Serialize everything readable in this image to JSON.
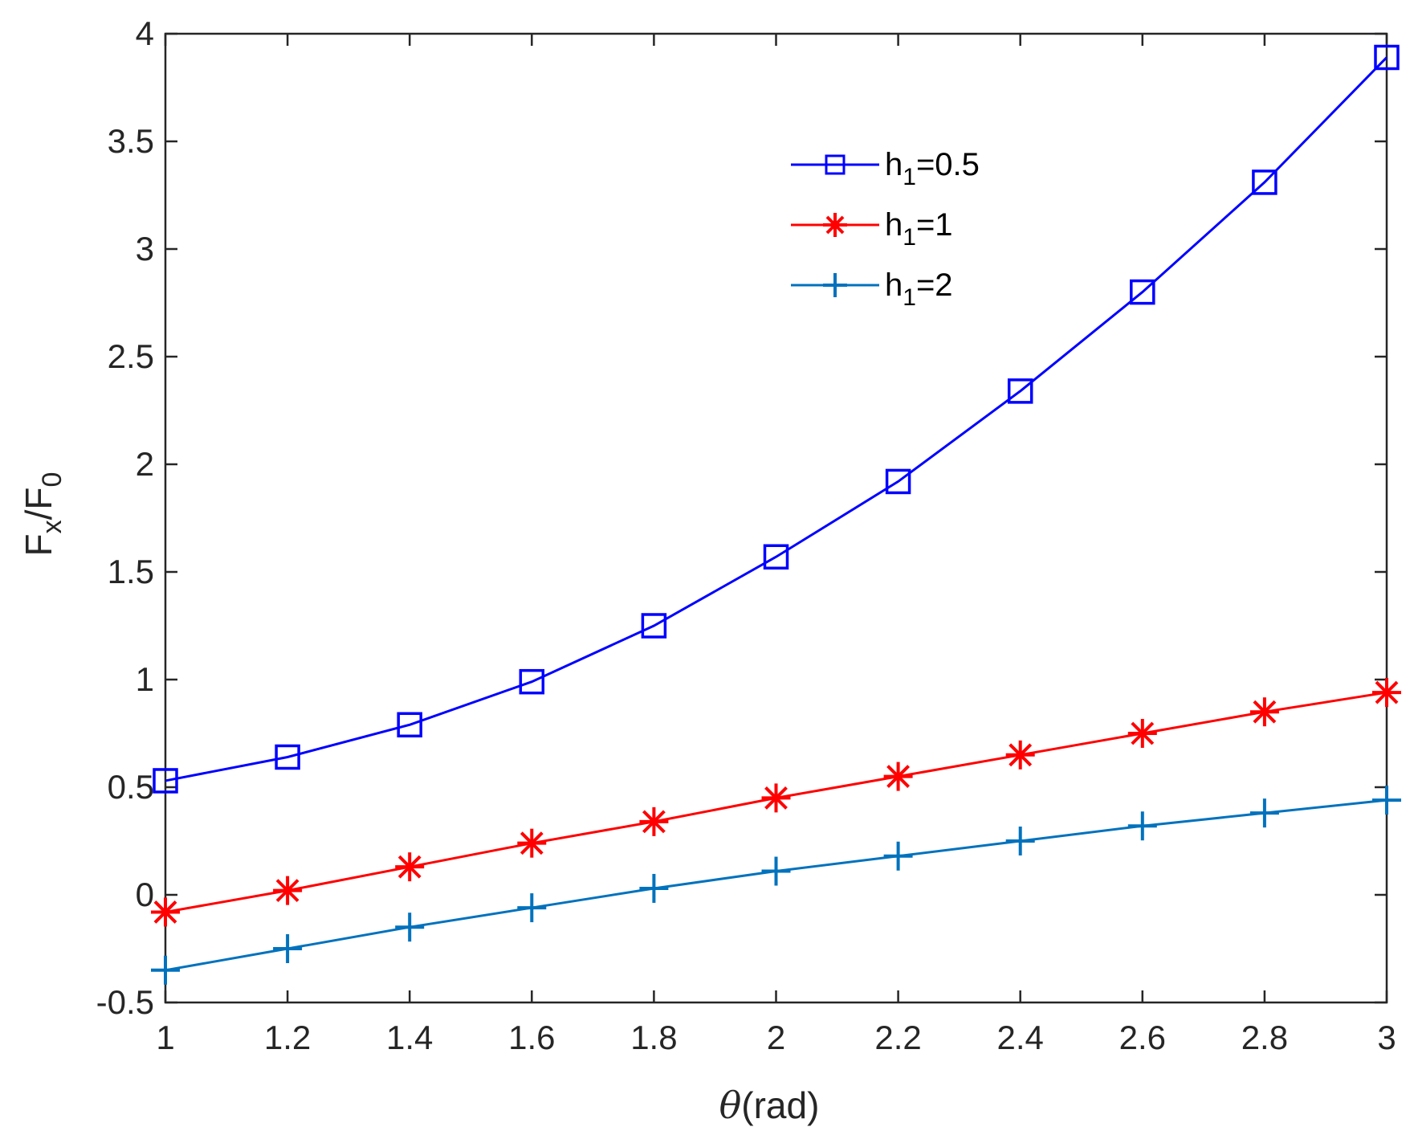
{
  "chart_data": {
    "type": "line",
    "title": "",
    "xlabel": {
      "symbol": "θ",
      "rest": "(rad)"
    },
    "ylabel": {
      "main1": "F",
      "sub1": "x",
      "sep": "/F",
      "sub2": "0"
    },
    "xlim": [
      1,
      3
    ],
    "ylim": [
      -0.5,
      4
    ],
    "xticks": [
      1,
      1.2,
      1.4,
      1.6,
      1.8,
      2,
      2.2,
      2.4,
      2.6,
      2.8,
      3
    ],
    "xtick_labels": [
      "1",
      "1.2",
      "1.4",
      "1.6",
      "1.8",
      "2",
      "2.2",
      "2.4",
      "2.6",
      "2.8",
      "3"
    ],
    "yticks": [
      -0.5,
      0,
      0.5,
      1,
      1.5,
      2,
      2.5,
      3,
      3.5,
      4
    ],
    "ytick_labels": [
      "-0.5",
      "0",
      "0.5",
      "1",
      "1.5",
      "2",
      "2.5",
      "3",
      "3.5",
      "4"
    ],
    "grid": false,
    "legend_position": "top-center",
    "x": [
      1,
      1.2,
      1.4,
      1.6,
      1.8,
      2,
      2.2,
      2.4,
      2.6,
      2.8,
      3
    ],
    "series": [
      {
        "name": "h1=0.5",
        "legend": {
          "prefix": "h",
          "sub": "1",
          "suffix": "=0.5"
        },
        "color": "#0000ff",
        "marker": "square",
        "values": [
          0.53,
          0.64,
          0.79,
          0.99,
          1.25,
          1.57,
          1.92,
          2.34,
          2.8,
          3.31,
          3.89
        ]
      },
      {
        "name": "h1=1",
        "legend": {
          "prefix": "h",
          "sub": "1",
          "suffix": "=1"
        },
        "color": "#ff0000",
        "marker": "asterisk",
        "values": [
          -0.08,
          0.02,
          0.13,
          0.24,
          0.34,
          0.45,
          0.55,
          0.65,
          0.75,
          0.85,
          0.94
        ]
      },
      {
        "name": "h1=2",
        "legend": {
          "prefix": "h",
          "sub": "1",
          "suffix": "=2"
        },
        "color": "#0072bd",
        "marker": "plus",
        "values": [
          -0.35,
          -0.25,
          -0.15,
          -0.06,
          0.03,
          0.11,
          0.18,
          0.25,
          0.32,
          0.38,
          0.44
        ]
      }
    ]
  }
}
